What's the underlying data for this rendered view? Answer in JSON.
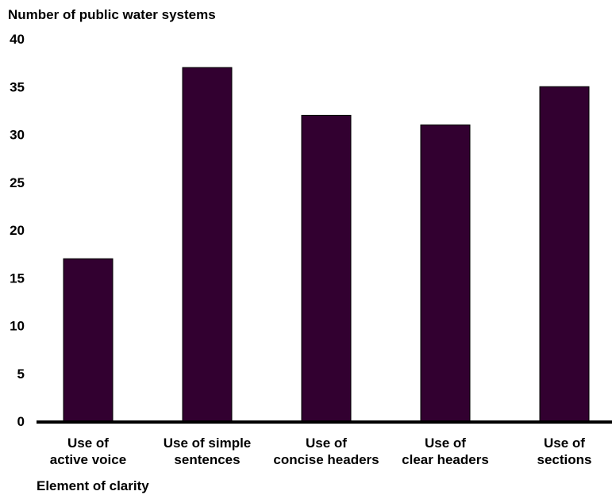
{
  "chart_data": {
    "type": "bar",
    "ylabel": "Number of public water systems",
    "xlabel": "Element of clarity",
    "categories": [
      [
        "Use of",
        "active voice"
      ],
      [
        "Use of simple",
        "sentences"
      ],
      [
        "Use of",
        "concise headers"
      ],
      [
        "Use of",
        "clear headers"
      ],
      [
        "Use of",
        "sections"
      ]
    ],
    "values": [
      17,
      37,
      32,
      31,
      35
    ],
    "ylim": [
      0,
      40
    ],
    "yticks": [
      0,
      5,
      10,
      15,
      20,
      25,
      30,
      35,
      40
    ],
    "grid": false,
    "bar_color": "#320030",
    "axis_color": "#000000"
  }
}
